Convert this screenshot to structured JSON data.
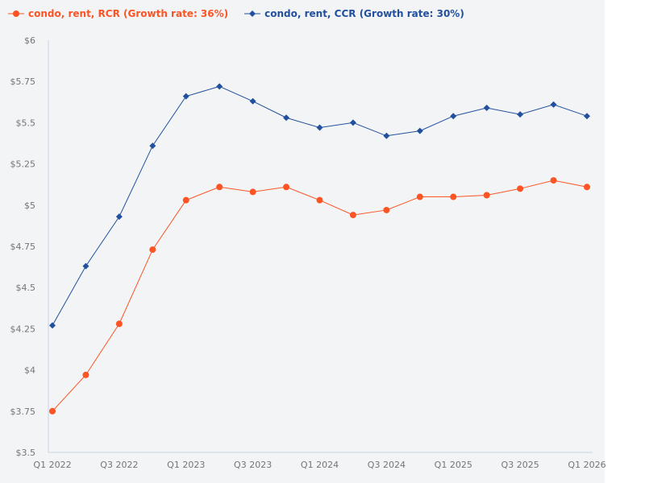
{
  "chart_data": {
    "type": "line",
    "title": "",
    "xlabel": "",
    "ylabel": "",
    "x": [
      "Q1 2022",
      "Q2 2022",
      "Q3 2022",
      "Q4 2022",
      "Q1 2023",
      "Q2 2023",
      "Q3 2023",
      "Q4 2023",
      "Q1 2024",
      "Q2 2024",
      "Q3 2024",
      "Q4 2024",
      "Q1 2025",
      "Q2 2025",
      "Q3 2025",
      "Q4 2025",
      "Q1 2026"
    ],
    "x_tick_labels": [
      "Q1 2022",
      "Q3 2022",
      "Q1 2023",
      "Q3 2023",
      "Q1 2024",
      "Q3 2024",
      "Q1 2025",
      "Q3 2025",
      "Q1 2026"
    ],
    "y_tick_labels": [
      "$3.5",
      "$3.75",
      "$4",
      "$4.25",
      "$4.5",
      "$4.75",
      "$5",
      "$5.25",
      "$5.5",
      "$5.75",
      "$6"
    ],
    "y_ticks": [
      3.5,
      3.75,
      4,
      4.25,
      4.5,
      4.75,
      5,
      5.25,
      5.5,
      5.75,
      6
    ],
    "ylim": [
      3.5,
      6
    ],
    "grid": false,
    "legend_position": "top-left",
    "series": [
      {
        "name": "condo, rent, RCR (Growth rate: 36%)",
        "color": "#fc5424",
        "marker": "circle",
        "values": [
          3.75,
          3.97,
          4.28,
          4.73,
          5.03,
          5.11,
          5.08,
          5.11,
          5.03,
          4.94,
          4.97,
          5.05,
          5.05,
          5.06,
          5.1,
          5.15,
          5.11
        ]
      },
      {
        "name": "condo, rent, CCR (Growth rate: 30%)",
        "color": "#22509e",
        "marker": "diamond",
        "values": [
          4.27,
          4.63,
          4.93,
          5.36,
          5.66,
          5.72,
          5.63,
          5.53,
          5.47,
          5.5,
          5.42,
          5.45,
          5.54,
          5.59,
          5.55,
          5.61,
          5.54
        ]
      }
    ]
  }
}
